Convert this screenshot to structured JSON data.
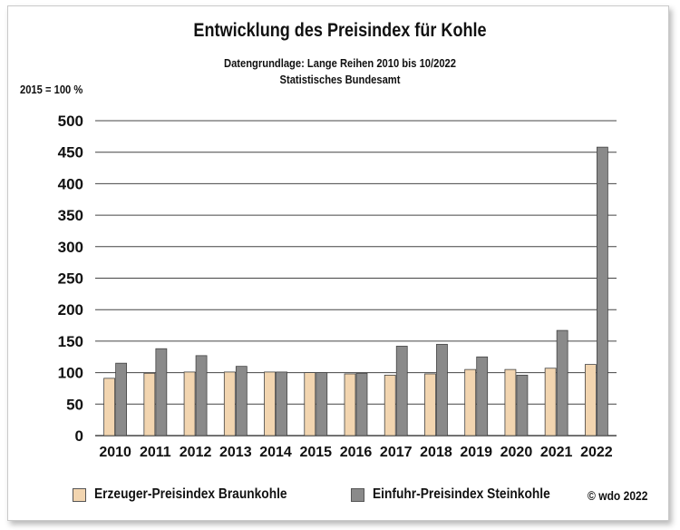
{
  "title": "Entwicklung des Preisindex für Kohle",
  "subtitle_line1": "Datengrundlage: Lange Reihen 2010 bis 10/2022",
  "subtitle_line2": "Statistisches Bundesamt",
  "unit_label": "2015 = 100 %",
  "copyright": "© wdo 2022",
  "colors": {
    "braunkohle": "#f2d5b0",
    "steinkohle": "#8a8a8a",
    "grid": "#444444"
  },
  "chart_data": {
    "type": "bar",
    "categories": [
      "2010",
      "2011",
      "2012",
      "2013",
      "2014",
      "2015",
      "2016",
      "2017",
      "2018",
      "2019",
      "2020",
      "2021",
      "2022"
    ],
    "series": [
      {
        "name": "Erzeuger-Preisindex Braunkohle",
        "values": [
          91,
          99,
          101,
          101,
          101,
          100,
          98,
          96,
          98,
          105,
          105,
          107,
          113
        ]
      },
      {
        "name": "Einfuhr-Preisindex Steinkohle",
        "values": [
          115,
          138,
          127,
          110,
          101,
          100,
          99,
          142,
          145,
          125,
          96,
          167,
          458
        ]
      }
    ],
    "yticks": [
      0,
      50,
      100,
      150,
      200,
      250,
      300,
      350,
      400,
      450,
      500
    ],
    "ylim": [
      0,
      500
    ],
    "grid": true,
    "legend_position": "bottom"
  }
}
